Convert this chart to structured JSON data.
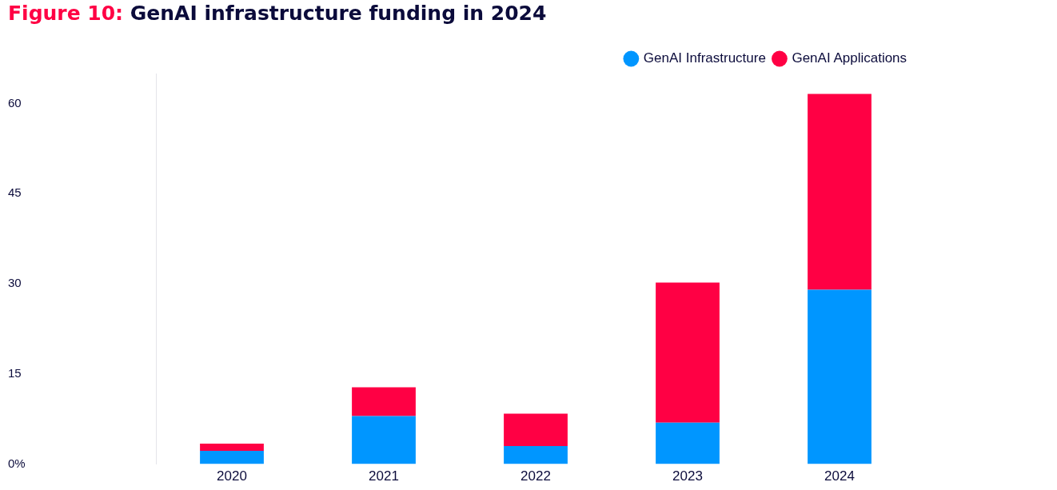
{
  "chart_data": {
    "type": "bar",
    "title": "Figure 10: GenAI infrastructure funding in 2024",
    "categories": [
      "2020",
      "2021",
      "2022",
      "2023",
      "2024"
    ],
    "stacked": true,
    "series": [
      {
        "name": "GenAI Infrastructure",
        "color": "#0096ff",
        "values": [
          2.2,
          8.0,
          3.0,
          6.9,
          29.0
        ]
      },
      {
        "name": "GenAI Applications",
        "color": "#ff0044",
        "values": [
          1.2,
          4.8,
          5.4,
          23.3,
          32.6
        ]
      }
    ],
    "ylim": [
      0,
      65
    ],
    "yticks": [
      {
        "value": 0,
        "label": "0%"
      },
      15,
      30,
      45,
      60
    ],
    "grid": false,
    "legend": "top right"
  }
}
